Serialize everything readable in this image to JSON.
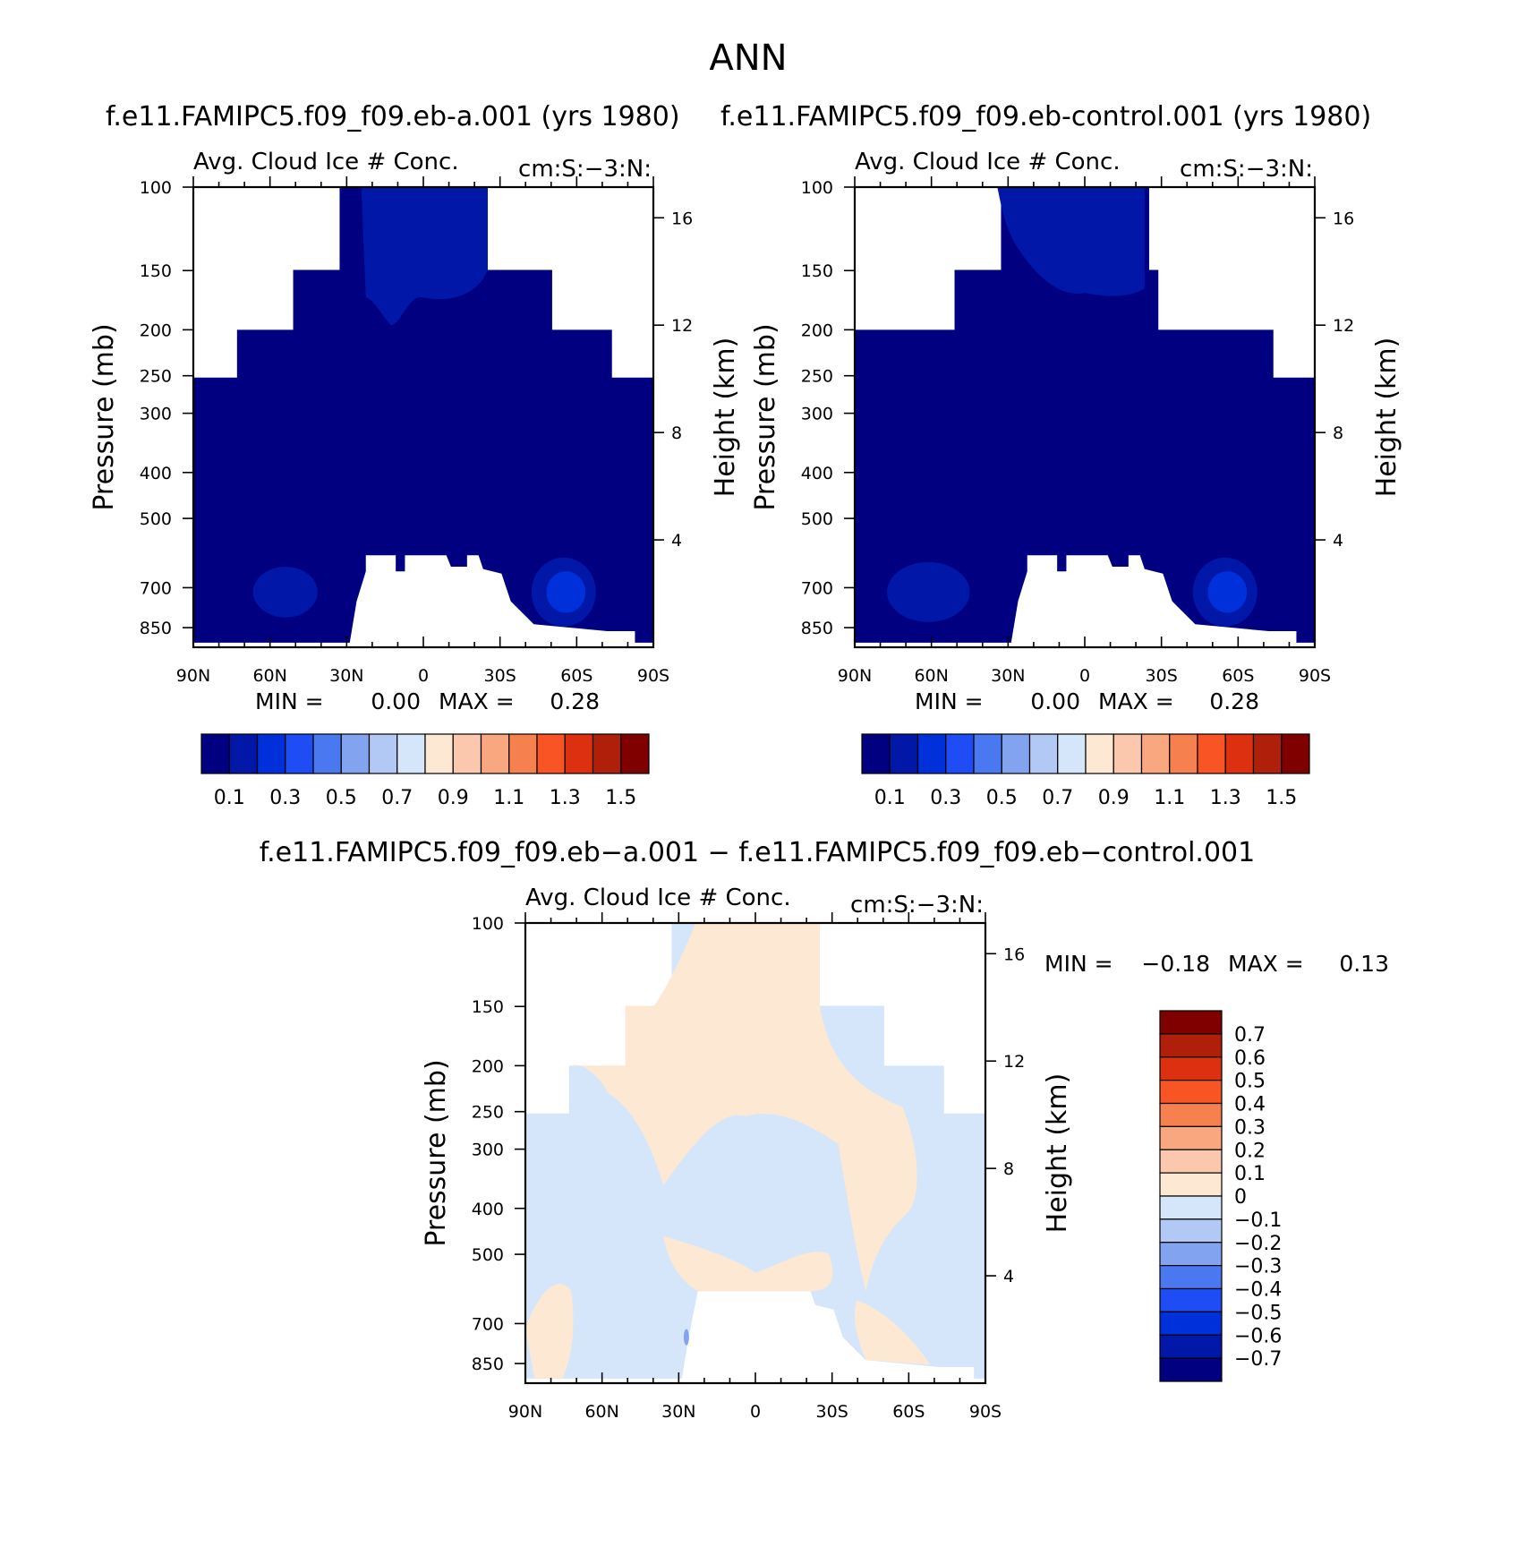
{
  "figure_title": "ANN",
  "colors": {
    "abs_scale": [
      "#000080",
      "#0017a8",
      "#0030d9",
      "#1f4df5",
      "#4a78f0",
      "#82a3f0",
      "#b3c9f5",
      "#d6e6fa",
      "#fde8d4",
      "#fcc8ad",
      "#f9a77f",
      "#f7804f",
      "#f95423",
      "#dd3010",
      "#b01f0a",
      "#800000"
    ],
    "diff_scale": [
      "#000080",
      "#0017a8",
      "#0030d9",
      "#1f4df5",
      "#4a78f0",
      "#82a3f0",
      "#b3c9f5",
      "#d6e6fa",
      "#fde8d4",
      "#fcc8ad",
      "#f9a77f",
      "#f7804f",
      "#f95423",
      "#dd3010",
      "#b01f0a",
      "#800000"
    ]
  },
  "chart_data": [
    {
      "type": "heatmap",
      "name": "panel-a",
      "case_title": "f.e11.FAMIPC5.f09_f09.eb-a.001 (yrs 1980)",
      "title_left": "Avg. Cloud Ice # Conc.",
      "title_right": "cm:S:-3:N:",
      "xlabel": "",
      "ylabel": "Pressure (mb)",
      "ylabel_right": "Height (km)",
      "xticks": [
        "90N",
        "60N",
        "30N",
        "0",
        "30S",
        "60S",
        "90S"
      ],
      "yticks": [
        "100",
        "150",
        "200",
        "250",
        "300",
        "400",
        "500",
        "700",
        "850"
      ],
      "yticks_right": [
        "16",
        "12",
        "8",
        "4"
      ],
      "min_label": "MIN =",
      "min_value": "0.00",
      "max_label": "MAX =",
      "max_value": "0.28",
      "colorbar_labels": [
        "0.1",
        "0.3",
        "0.5",
        "0.7",
        "0.9",
        "1.1",
        "1.3",
        "1.5"
      ],
      "colorbar_levels": [
        0.0,
        0.1,
        0.2,
        0.3,
        0.4,
        0.5,
        0.6,
        0.7,
        0.8,
        0.9,
        1.0,
        1.1,
        1.2,
        1.3,
        1.4,
        1.5,
        1.6
      ]
    },
    {
      "type": "heatmap",
      "name": "panel-b",
      "case_title": "f.e11.FAMIPC5.f09_f09.eb-control.001 (yrs 1980)",
      "title_left": "Avg. Cloud Ice # Conc.",
      "title_right": "cm:S:-3:N:",
      "xlabel": "",
      "ylabel": "Pressure (mb)",
      "ylabel_right": "Height (km)",
      "xticks": [
        "90N",
        "60N",
        "30N",
        "0",
        "30S",
        "60S",
        "90S"
      ],
      "yticks": [
        "100",
        "150",
        "200",
        "250",
        "300",
        "400",
        "500",
        "700",
        "850"
      ],
      "yticks_right": [
        "16",
        "12",
        "8",
        "4"
      ],
      "min_label": "MIN =",
      "min_value": "0.00",
      "max_label": "MAX =",
      "max_value": "0.28",
      "colorbar_labels": [
        "0.1",
        "0.3",
        "0.5",
        "0.7",
        "0.9",
        "1.1",
        "1.3",
        "1.5"
      ],
      "colorbar_levels": [
        0.0,
        0.1,
        0.2,
        0.3,
        0.4,
        0.5,
        0.6,
        0.7,
        0.8,
        0.9,
        1.0,
        1.1,
        1.2,
        1.3,
        1.4,
        1.5,
        1.6
      ]
    },
    {
      "type": "heatmap",
      "name": "panel-diff",
      "case_title": "f.e11.FAMIPC5.f09_f09.eb-a.001 - f.e11.FAMIPC5.f09_f09.eb-control.001",
      "title_left": "Avg. Cloud Ice # Conc.",
      "title_right": "cm:S:-3:N:",
      "xlabel": "",
      "ylabel": "Pressure (mb)",
      "ylabel_right": "Height (km)",
      "xticks": [
        "90N",
        "60N",
        "30N",
        "0",
        "30S",
        "60S",
        "90S"
      ],
      "yticks": [
        "100",
        "150",
        "200",
        "250",
        "300",
        "400",
        "500",
        "700",
        "850"
      ],
      "yticks_right": [
        "16",
        "12",
        "8",
        "4"
      ],
      "min_label": "MIN =",
      "min_value": "-0.18",
      "max_label": "MAX =",
      "max_value": "0.13",
      "colorbar_labels": [
        "0.7",
        "0.6",
        "0.5",
        "0.4",
        "0.3",
        "0.2",
        "0.1",
        "0",
        "-0.1",
        "-0.2",
        "-0.3",
        "-0.4",
        "-0.5",
        "-0.6",
        "-0.7"
      ],
      "colorbar_levels": [
        -0.8,
        -0.7,
        -0.6,
        -0.5,
        -0.4,
        -0.3,
        -0.2,
        -0.1,
        0,
        0.1,
        0.2,
        0.3,
        0.4,
        0.5,
        0.6,
        0.7,
        0.8
      ]
    }
  ]
}
